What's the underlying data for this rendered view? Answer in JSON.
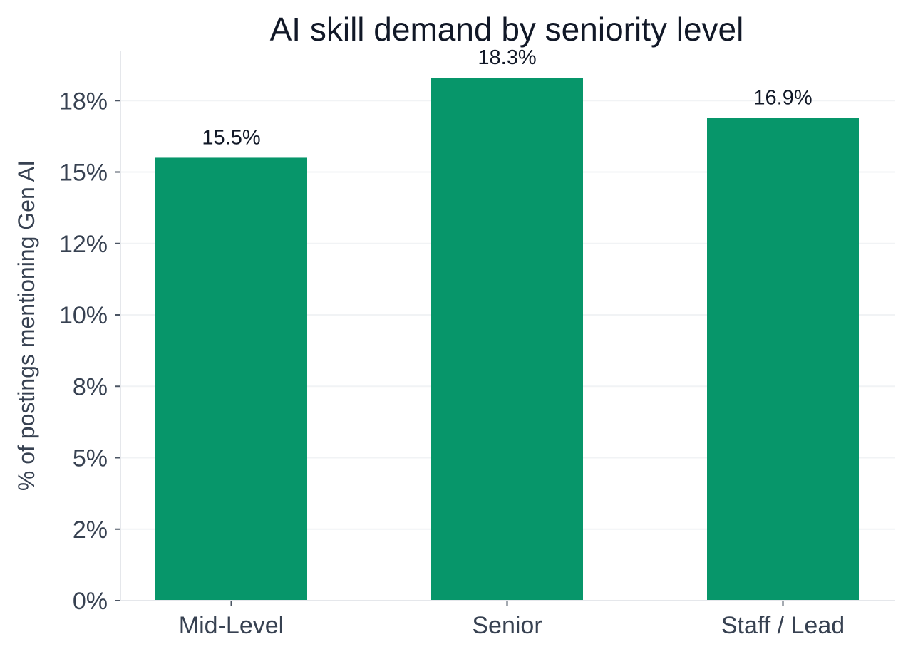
{
  "chart_data": {
    "type": "bar",
    "title": "AI skill demand by seniority level",
    "xlabel": "",
    "ylabel": "% of postings mentioning Gen AI",
    "categories": [
      "Mid-Level",
      "Senior",
      "Staff / Lead"
    ],
    "values": [
      15.5,
      18.3,
      16.9
    ],
    "value_labels": [
      "15.5%",
      "18.3%",
      "16.9%"
    ],
    "ylim": [
      0,
      19.2
    ],
    "yticks": [
      0,
      2.5,
      5,
      7.5,
      10,
      12.5,
      15,
      17.5
    ],
    "ytick_labels": [
      "0%",
      "2%",
      "5%",
      "8%",
      "10%",
      "12%",
      "15%",
      "18%"
    ],
    "grid": "horizontal",
    "legend": "none",
    "colors": {
      "bar": "#07966a",
      "title": "#111827",
      "axis_text": "#374151",
      "grid": "#f1f3f5"
    }
  }
}
